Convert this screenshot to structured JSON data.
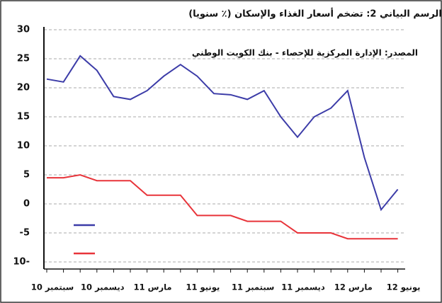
{
  "chart_data": {
    "type": "line",
    "title": "الرسم البياني 2: تضخم أسعار الغذاء والإسكان (٪ سنويا)",
    "annotation": "المصدر: الإدارة المركزية للإحصاء - بنك الكويت الوطني",
    "categories": [
      "سبتمبر 10",
      null,
      null,
      "ديسمبر 10",
      null,
      null,
      "مارس 11",
      null,
      null,
      "يونيو 11",
      null,
      null,
      "سبتمبر 11",
      null,
      null,
      "ديسمبر 11",
      null,
      null,
      "مارس 12",
      null,
      null,
      "يونيو 12"
    ],
    "series": [
      {
        "color": "#3c3ca8",
        "values": [
          21.5,
          21,
          25.5,
          23,
          18.5,
          18,
          19.5,
          22,
          24,
          22,
          19,
          18.8,
          18,
          19.5,
          15,
          11.5,
          15,
          16.5,
          19.5,
          8,
          -1,
          2.5
        ]
      },
      {
        "color": "#e8343a",
        "values": [
          4.5,
          4.5,
          5,
          4,
          4,
          4,
          1.5,
          1.5,
          1.5,
          -2,
          -2,
          -2,
          -3,
          -3,
          -3,
          -5,
          -5,
          -5,
          -6,
          -6,
          -6,
          -6
        ]
      }
    ],
    "ylim": [
      -10,
      30
    ],
    "yticks": [
      {
        "value": -10,
        "label": "10-"
      },
      -5,
      0,
      5,
      10,
      15,
      20,
      25,
      30
    ],
    "grid": true
  }
}
